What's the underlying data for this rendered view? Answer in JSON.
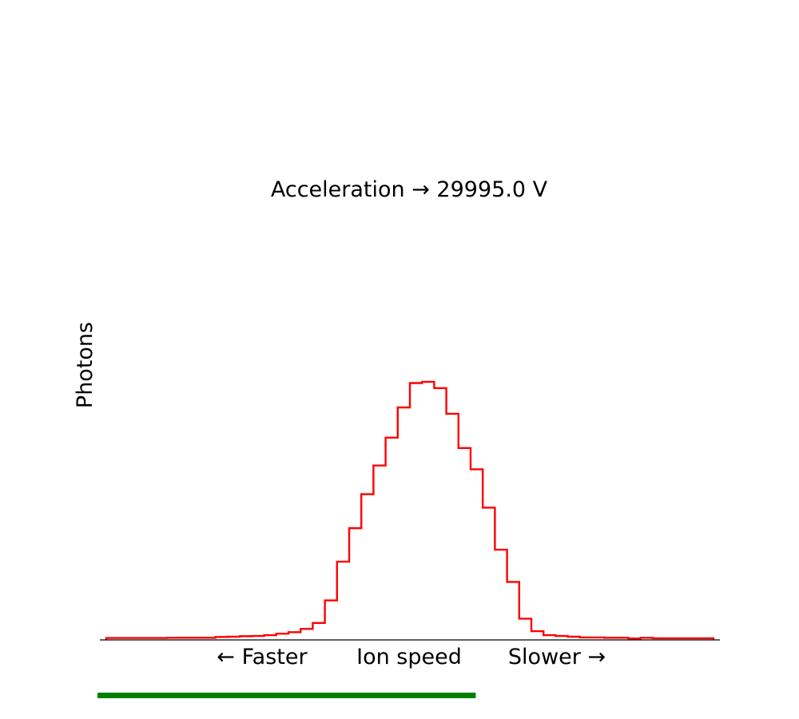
{
  "chart_data": {
    "type": "histogram",
    "title": "Acceleration → 29995.0 V",
    "ylabel": "Photons",
    "xlabel": {
      "left": "← Faster",
      "center": "Ion speed",
      "right": "Slower →"
    },
    "bins": 50,
    "values": [
      0.6,
      0.6,
      0.6,
      0.6,
      0.6,
      0.7,
      0.7,
      0.7,
      0.7,
      1.0,
      1.1,
      1.3,
      1.4,
      1.7,
      2.3,
      2.9,
      4.2,
      6.5,
      15.4,
      30.7,
      43.9,
      57.3,
      68.6,
      79.6,
      91.5,
      101.1,
      101.6,
      99.1,
      89.0,
      75.5,
      67.1,
      52.0,
      35.4,
      22.7,
      8.2,
      3.3,
      1.7,
      1.4,
      1.1,
      0.8,
      0.8,
      0.7,
      0.7,
      0.4,
      0.7,
      0.5,
      0.5,
      0.5,
      0.5,
      0.5
    ],
    "ylim": [
      0,
      140
    ],
    "grid": false,
    "progress": 0.61,
    "colors": {
      "line": "#ff0000",
      "axis": "#000000",
      "progress": "#008000"
    }
  }
}
